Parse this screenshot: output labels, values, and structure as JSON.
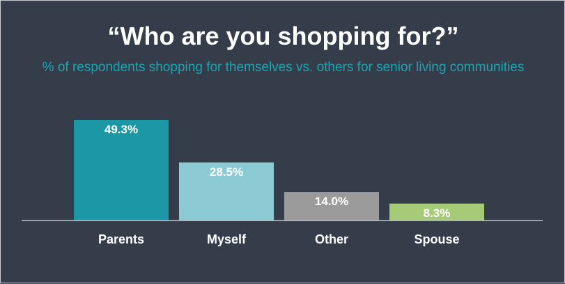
{
  "chart_data": {
    "type": "bar",
    "title": "“Who are you shopping for?”",
    "subtitle": "% of respondents shopping for themselves vs. others for senior living communities",
    "categories": [
      "Parents",
      "Myself",
      "Other",
      "Spouse"
    ],
    "values": [
      49.3,
      28.5,
      14.0,
      8.3
    ],
    "value_labels": [
      "49.3%",
      "28.5%",
      "14.0%",
      "8.3%"
    ],
    "colors": [
      "#1b97a6",
      "#8ccbd3",
      "#9b9b9b",
      "#a6ca78"
    ],
    "ylim": [
      0,
      49.3
    ],
    "grid": false,
    "legend": "none"
  }
}
